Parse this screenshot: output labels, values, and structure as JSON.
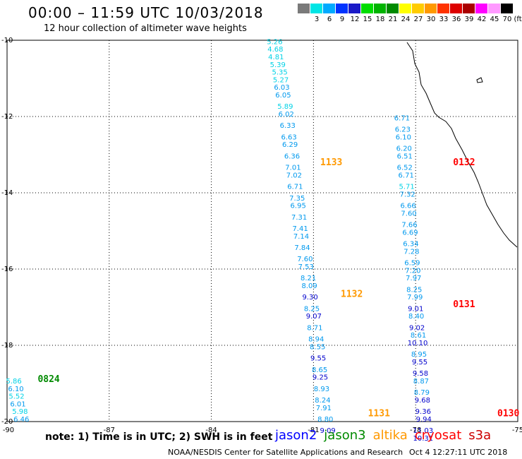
{
  "header": {
    "title": "00:00 – 11:59 UTC 10/03/2018",
    "subtitle": "12 hour collection of altimeter wave heights"
  },
  "legend": {
    "unit": "(ft)",
    "items": [
      {
        "label": "",
        "color": "#7a7a7a"
      },
      {
        "label": "3",
        "color": "#00e5e5"
      },
      {
        "label": "6",
        "color": "#00aaff"
      },
      {
        "label": "9",
        "color": "#0033ff"
      },
      {
        "label": "12",
        "color": "#1b1bc8"
      },
      {
        "label": "15",
        "color": "#00dd00"
      },
      {
        "label": "18",
        "color": "#00b400"
      },
      {
        "label": "21",
        "color": "#008a00"
      },
      {
        "label": "24",
        "color": "#ffff00"
      },
      {
        "label": "27",
        "color": "#ffcc00"
      },
      {
        "label": "30",
        "color": "#ff9900"
      },
      {
        "label": "33",
        "color": "#ff3300"
      },
      {
        "label": "36",
        "color": "#dd0000"
      },
      {
        "label": "39",
        "color": "#aa0000"
      },
      {
        "label": "42",
        "color": "#ff00ff"
      },
      {
        "label": "45",
        "color": "#ff99ff"
      },
      {
        "label": "70",
        "color": "#000000"
      }
    ]
  },
  "axes": {
    "x_ticks": [
      "-90",
      "-87",
      "-84",
      "-81",
      "-78",
      "-75"
    ],
    "y_ticks": [
      "-10",
      "-12",
      "-14",
      "-16",
      "-18",
      "-20"
    ]
  },
  "passes": [
    {
      "time": "1133",
      "color": "#ff9900",
      "lon": -80.8,
      "lat": -13.28
    },
    {
      "time": "1132",
      "color": "#ff9900",
      "lon": -80.2,
      "lat": -16.73
    },
    {
      "time": "1131",
      "color": "#ff9900",
      "lon": -79.4,
      "lat": -19.86
    },
    {
      "time": "0132",
      "color": "#ff0000",
      "lon": -76.9,
      "lat": -13.28
    },
    {
      "time": "0131",
      "color": "#ff0000",
      "lon": -76.9,
      "lat": -17.0
    },
    {
      "time": "0130",
      "color": "#ff0000",
      "lon": -75.6,
      "lat": -19.86
    },
    {
      "time": "0824",
      "color": "#008a00",
      "lon": -89.1,
      "lat": -18.96
    }
  ],
  "tracks": [
    {
      "name": "altika",
      "points": [
        {
          "v": "5.26",
          "lon": -82.14,
          "lat": -10.1
        },
        {
          "v": "4.68",
          "lon": -82.12,
          "lat": -10.3
        },
        {
          "v": "4.81",
          "lon": -82.1,
          "lat": -10.5
        },
        {
          "v": "5.39",
          "lon": -82.05,
          "lat": -10.7
        },
        {
          "v": "5.35",
          "lon": -81.99,
          "lat": -10.9
        },
        {
          "v": "5.27",
          "lon": -81.96,
          "lat": -11.1
        },
        {
          "v": "6.03",
          "lon": -81.93,
          "lat": -11.3
        },
        {
          "v": "6.05",
          "lon": -81.89,
          "lat": -11.5
        },
        {
          "v": "5.89",
          "lon": -81.83,
          "lat": -11.8
        },
        {
          "v": "6.02",
          "lon": -81.8,
          "lat": -12.0
        },
        {
          "v": "6.33",
          "lon": -81.76,
          "lat": -12.3
        },
        {
          "v": "6.63",
          "lon": -81.72,
          "lat": -12.6
        },
        {
          "v": "6.29",
          "lon": -81.69,
          "lat": -12.8
        },
        {
          "v": "6.36",
          "lon": -81.63,
          "lat": -13.1
        },
        {
          "v": "7.01",
          "lon": -81.6,
          "lat": -13.4
        },
        {
          "v": "7.02",
          "lon": -81.57,
          "lat": -13.6
        },
        {
          "v": "6.71",
          "lon": -81.54,
          "lat": -13.9
        },
        {
          "v": "7.35",
          "lon": -81.48,
          "lat": -14.2
        },
        {
          "v": "6.95",
          "lon": -81.45,
          "lat": -14.4
        },
        {
          "v": "7.31",
          "lon": -81.42,
          "lat": -14.7
        },
        {
          "v": "7.41",
          "lon": -81.39,
          "lat": -15.0
        },
        {
          "v": "7.14",
          "lon": -81.36,
          "lat": -15.2
        },
        {
          "v": "7.84",
          "lon": -81.33,
          "lat": -15.5
        },
        {
          "v": "7.60",
          "lon": -81.25,
          "lat": -15.8
        },
        {
          "v": "7.53",
          "lon": -81.22,
          "lat": -16.0
        },
        {
          "v": "8.21",
          "lon": -81.15,
          "lat": -16.3
        },
        {
          "v": "8.09",
          "lon": -81.12,
          "lat": -16.5
        },
        {
          "v": "9.30",
          "lon": -81.1,
          "lat": -16.8
        },
        {
          "v": "8.25",
          "lon": -81.05,
          "lat": -17.1
        },
        {
          "v": "9.07",
          "lon": -80.99,
          "lat": -17.3
        },
        {
          "v": "8.71",
          "lon": -80.96,
          "lat": -17.6
        },
        {
          "v": "8.94",
          "lon": -80.92,
          "lat": -17.9
        },
        {
          "v": "8.55",
          "lon": -80.88,
          "lat": -18.1
        },
        {
          "v": "9.55",
          "lon": -80.86,
          "lat": -18.4
        },
        {
          "v": "8.65",
          "lon": -80.82,
          "lat": -18.7
        },
        {
          "v": "9.25",
          "lon": -80.8,
          "lat": -18.9
        },
        {
          "v": "8.93",
          "lon": -80.76,
          "lat": -19.2
        },
        {
          "v": "8.24",
          "lon": -80.73,
          "lat": -19.5
        },
        {
          "v": "7.91",
          "lon": -80.7,
          "lat": -19.7
        },
        {
          "v": "8.80",
          "lon": -80.65,
          "lat": -20.0
        },
        {
          "v": "9.09",
          "lon": -80.58,
          "lat": -20.3
        }
      ]
    },
    {
      "name": "cryosat",
      "points": [
        {
          "v": "6.71",
          "lon": -78.4,
          "lat": -12.1
        },
        {
          "v": "6.23",
          "lon": -78.38,
          "lat": -12.4
        },
        {
          "v": "6.10",
          "lon": -78.36,
          "lat": -12.6
        },
        {
          "v": "6.20",
          "lon": -78.34,
          "lat": -12.9
        },
        {
          "v": "6.51",
          "lon": -78.32,
          "lat": -13.1
        },
        {
          "v": "6.52",
          "lon": -78.32,
          "lat": -13.4
        },
        {
          "v": "6.71",
          "lon": -78.28,
          "lat": -13.6
        },
        {
          "v": "5.71",
          "lon": -78.26,
          "lat": -13.9
        },
        {
          "v": "7.32",
          "lon": -78.24,
          "lat": -14.1
        },
        {
          "v": "6.66",
          "lon": -78.22,
          "lat": -14.4
        },
        {
          "v": "7.60",
          "lon": -78.2,
          "lat": -14.6
        },
        {
          "v": "7.66",
          "lon": -78.18,
          "lat": -14.9
        },
        {
          "v": "6.69",
          "lon": -78.16,
          "lat": -15.1
        },
        {
          "v": "6.34",
          "lon": -78.14,
          "lat": -15.4
        },
        {
          "v": "7.28",
          "lon": -78.12,
          "lat": -15.6
        },
        {
          "v": "6.59",
          "lon": -78.1,
          "lat": -15.9
        },
        {
          "v": "7.20",
          "lon": -78.08,
          "lat": -16.1
        },
        {
          "v": "7.97",
          "lon": -78.06,
          "lat": -16.3
        },
        {
          "v": "8.25",
          "lon": -78.04,
          "lat": -16.6
        },
        {
          "v": "7.99",
          "lon": -78.02,
          "lat": -16.8
        },
        {
          "v": "9.01",
          "lon": -78.0,
          "lat": -17.1
        },
        {
          "v": "8.40",
          "lon": -77.98,
          "lat": -17.3
        },
        {
          "v": "9.02",
          "lon": -77.96,
          "lat": -17.6
        },
        {
          "v": "8.61",
          "lon": -77.92,
          "lat": -17.8
        },
        {
          "v": "10.10",
          "lon": -77.94,
          "lat": -18.0
        },
        {
          "v": "8.95",
          "lon": -77.9,
          "lat": -18.3
        },
        {
          "v": "9.55",
          "lon": -77.88,
          "lat": -18.5
        },
        {
          "v": "9.58",
          "lon": -77.86,
          "lat": -18.8
        },
        {
          "v": "8.87",
          "lon": -77.84,
          "lat": -19.0
        },
        {
          "v": "8.79",
          "lon": -77.82,
          "lat": -19.3
        },
        {
          "v": "9.68",
          "lon": -77.8,
          "lat": -19.5
        },
        {
          "v": "9.36",
          "lon": -77.78,
          "lat": -19.8
        },
        {
          "v": "9.94",
          "lon": -77.76,
          "lat": -20.0
        },
        {
          "v": "11.03",
          "lon": -77.78,
          "lat": -20.3
        },
        {
          "v": "10.31",
          "lon": -77.78,
          "lat": -20.5
        }
      ]
    },
    {
      "name": "jason3",
      "points": [
        {
          "v": "5.86",
          "lon": -89.8,
          "lat": -19.0
        },
        {
          "v": "6.10",
          "lon": -89.74,
          "lat": -19.2
        },
        {
          "v": "5.52",
          "lon": -89.72,
          "lat": -19.4
        },
        {
          "v": "6.01",
          "lon": -89.68,
          "lat": -19.6
        },
        {
          "v": "5.98",
          "lon": -89.62,
          "lat": -19.8
        },
        {
          "v": "6.46",
          "lon": -89.58,
          "lat": -20.0
        }
      ]
    }
  ],
  "footer": {
    "note": "note:  1) Time is in UTC;  2) SWH is in feet",
    "satellites": [
      {
        "name": "jason2",
        "color": "#0000ff"
      },
      {
        "name": "jason3",
        "color": "#008a00"
      },
      {
        "name": "altika",
        "color": "#ff9900"
      },
      {
        "name": "cryosat",
        "color": "#ff0000"
      },
      {
        "name": "s3a",
        "color": "#cc0000"
      }
    ],
    "credit": "NOAA/NESDIS Center for Satellite Applications and Research",
    "timestamp": "Oct  4 12:27:11 UTC 2018"
  }
}
